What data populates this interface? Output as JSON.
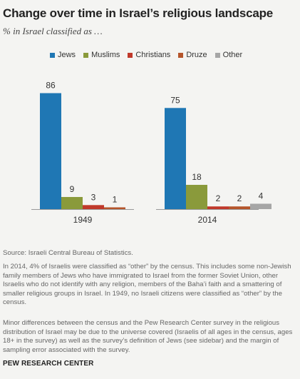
{
  "title": "Change over time in Israel’s religious landscape",
  "subtitle": "% in Israel classified as …",
  "chart_data": {
    "type": "bar",
    "categories": [
      "1949",
      "2014"
    ],
    "series": [
      {
        "name": "Jews",
        "color": "#1f77b4",
        "values": [
          86,
          75
        ]
      },
      {
        "name": "Muslims",
        "color": "#8a9a3b",
        "values": [
          9,
          18
        ]
      },
      {
        "name": "Christians",
        "color": "#c0392b",
        "values": [
          3,
          2
        ]
      },
      {
        "name": "Druze",
        "color": "#b5552b",
        "values": [
          1,
          2
        ]
      },
      {
        "name": "Other",
        "color": "#a6a6a6",
        "values": [
          null,
          4
        ]
      }
    ],
    "ylim": [
      0,
      100
    ],
    "grid": false,
    "legend": "top"
  },
  "notes": {
    "source": "Source: Israeli Central Bureau of Statistics.",
    "note1": "In 2014, 4% of Israelis were classified as “other” by the census. This includes some non-Jewish family members of Jews who have immigrated to Israel from the former Soviet Union, other Israelis who do not identify with any religion, members of the Baha’i faith and a smattering of smaller religious groups in Israel. In 1949, no Israeli citizens were classified as “other” by the census.",
    "note2": "Minor differences between the census and the Pew Research Center survey in the religious distribution of Israel may be due to the universe covered (Israelis of all ages in the census, ages 18+ in the survey) as well as the survey’s definition of Jews (see sidebar) and the margin of sampling error associated with the survey."
  },
  "footer": "PEW RESEARCH CENTER"
}
